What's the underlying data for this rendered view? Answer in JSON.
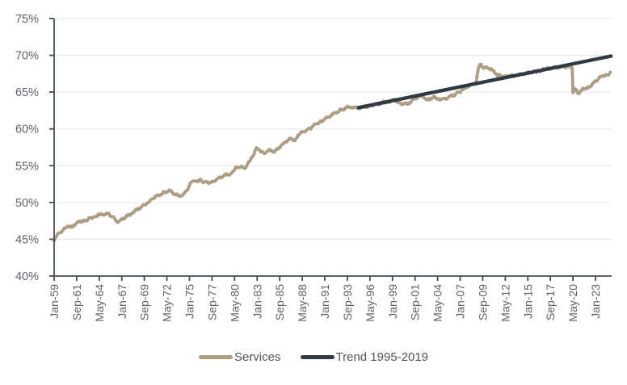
{
  "chart_data": {
    "type": "line",
    "title": "",
    "xlabel": "",
    "ylabel": "",
    "ylim": [
      40,
      75
    ],
    "y_tick_step": 5,
    "y_tick_labels": [
      "75%",
      "70%",
      "65%",
      "60%",
      "55%",
      "50%",
      "45%",
      "40%"
    ],
    "y_tick_values": [
      75,
      70,
      65,
      60,
      55,
      50,
      45,
      40
    ],
    "x_tick_labels": [
      "Jan-59",
      "Sep-61",
      "May-64",
      "Jan-67",
      "Sep-69",
      "May-72",
      "Jan-75",
      "Sep-77",
      "May-80",
      "Jan-83",
      "Sep-85",
      "May-88",
      "Jan-91",
      "Sep-93",
      "May-96",
      "Jan-99",
      "Sep-01",
      "May-04",
      "Jan-07",
      "Sep-09",
      "May-12",
      "Jan-15",
      "Sep-17",
      "May-20",
      "Jan-23"
    ],
    "x_tick_interval_months": 32,
    "x_range_years": [
      1959.0,
      2025.1
    ],
    "grid": "horizontal",
    "legend_position": "bottom-center",
    "series": [
      {
        "name": "Services",
        "type": "monthly-jagged-line",
        "color": "#AE9D85",
        "points": [
          [
            1959.0,
            44.9
          ],
          [
            1959.33,
            45.5
          ],
          [
            1959.75,
            46.0
          ],
          [
            1960.1,
            46.3
          ],
          [
            1960.6,
            46.8
          ],
          [
            1961.05,
            46.6
          ],
          [
            1961.5,
            47.1
          ],
          [
            1962.0,
            47.4
          ],
          [
            1962.8,
            47.6
          ],
          [
            1963.6,
            48.0
          ],
          [
            1964.3,
            48.3
          ],
          [
            1965.3,
            48.5
          ],
          [
            1965.9,
            48.1
          ],
          [
            1966.4,
            47.4
          ],
          [
            1966.8,
            47.5
          ],
          [
            1967.3,
            47.9
          ],
          [
            1968.0,
            48.4
          ],
          [
            1968.8,
            49.0
          ],
          [
            1969.6,
            49.6
          ],
          [
            1970.3,
            50.2
          ],
          [
            1970.9,
            50.8
          ],
          [
            1971.6,
            51.1
          ],
          [
            1972.2,
            51.5
          ],
          [
            1972.7,
            51.6
          ],
          [
            1973.3,
            51.1
          ],
          [
            1973.8,
            50.9
          ],
          [
            1974.3,
            51.1
          ],
          [
            1974.7,
            51.6
          ],
          [
            1975.1,
            52.6
          ],
          [
            1975.6,
            52.9
          ],
          [
            1976.3,
            53.0
          ],
          [
            1977.1,
            52.7
          ],
          [
            1977.6,
            52.7
          ],
          [
            1978.3,
            53.2
          ],
          [
            1979.0,
            53.6
          ],
          [
            1979.8,
            53.9
          ],
          [
            1980.4,
            54.6
          ],
          [
            1981.0,
            54.9
          ],
          [
            1981.5,
            54.7
          ],
          [
            1982.0,
            55.4
          ],
          [
            1982.5,
            56.4
          ],
          [
            1982.95,
            57.4
          ],
          [
            1983.3,
            57.1
          ],
          [
            1983.8,
            56.7
          ],
          [
            1984.5,
            57.1
          ],
          [
            1985.1,
            56.9
          ],
          [
            1985.8,
            57.7
          ],
          [
            1986.3,
            58.2
          ],
          [
            1987.0,
            58.7
          ],
          [
            1987.4,
            58.4
          ],
          [
            1988.2,
            59.5
          ],
          [
            1989.0,
            59.9
          ],
          [
            1989.8,
            60.5
          ],
          [
            1990.8,
            61.2
          ],
          [
            1991.8,
            61.9
          ],
          [
            1992.8,
            62.5
          ],
          [
            1993.6,
            62.9
          ],
          [
            1994.2,
            63.0
          ],
          [
            1994.7,
            62.8
          ],
          [
            1995.5,
            62.9
          ],
          [
            1996.5,
            63.2
          ],
          [
            1997.5,
            63.5
          ],
          [
            1998.5,
            63.7
          ],
          [
            1999.3,
            63.9
          ],
          [
            2000.2,
            63.4
          ],
          [
            2000.9,
            63.5
          ],
          [
            2001.7,
            64.1
          ],
          [
            2002.3,
            64.5
          ],
          [
            2003.2,
            64.0
          ],
          [
            2004.0,
            64.3
          ],
          [
            2004.8,
            64.0
          ],
          [
            2005.5,
            64.2
          ],
          [
            2006.2,
            64.6
          ],
          [
            2007.0,
            65.1
          ],
          [
            2008.0,
            65.8
          ],
          [
            2008.9,
            66.4
          ],
          [
            2009.2,
            68.4
          ],
          [
            2009.45,
            68.9
          ],
          [
            2009.8,
            68.2
          ],
          [
            2010.2,
            68.4
          ],
          [
            2010.7,
            68.1
          ],
          [
            2011.3,
            67.4
          ],
          [
            2012.0,
            67.1
          ],
          [
            2013.0,
            67.2
          ],
          [
            2014.0,
            67.4
          ],
          [
            2015.0,
            67.6
          ],
          [
            2016.0,
            67.8
          ],
          [
            2017.0,
            68.1
          ],
          [
            2018.0,
            68.3
          ],
          [
            2019.0,
            68.4
          ],
          [
            2019.9,
            68.5
          ],
          [
            2020.25,
            68.4
          ],
          [
            2020.33,
            64.9
          ],
          [
            2020.5,
            65.4
          ],
          [
            2020.75,
            65.2
          ],
          [
            2021.0,
            64.8
          ],
          [
            2021.3,
            65.3
          ],
          [
            2021.7,
            65.4
          ],
          [
            2022.1,
            65.6
          ],
          [
            2022.5,
            65.9
          ],
          [
            2023.0,
            66.5
          ],
          [
            2023.5,
            67.0
          ],
          [
            2023.9,
            67.3
          ],
          [
            2024.2,
            67.4
          ],
          [
            2024.45,
            67.3
          ],
          [
            2024.83,
            67.9
          ]
        ]
      },
      {
        "name": "Trend 1995-2019",
        "type": "straight-line",
        "color": "#2E3B44",
        "points": [
          [
            1995.0,
            62.9
          ],
          [
            2024.83,
            69.9
          ]
        ]
      }
    ],
    "colors": {
      "services": "#AE9D85",
      "trend": "#2E3B44",
      "axis": "#454D54",
      "grid": "#E7EBED",
      "tick_text": "#5D6368",
      "legend_text": "#4E555C",
      "background": "#FFFFFF"
    }
  }
}
